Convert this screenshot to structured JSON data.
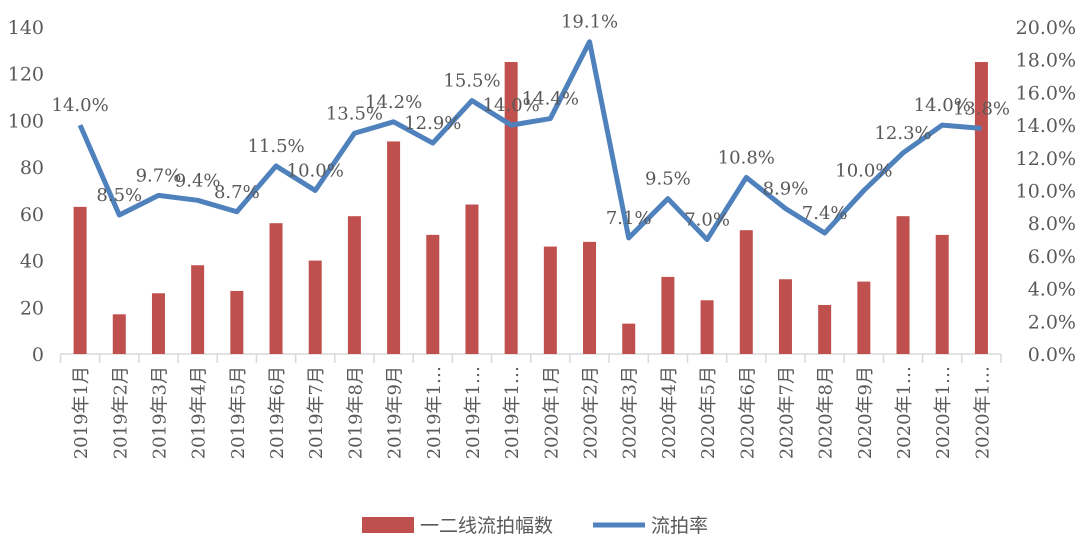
{
  "chart_data": {
    "type": "bar+line",
    "categories": [
      "2019年1月",
      "2019年2月",
      "2019年3月",
      "2019年4月",
      "2019年5月",
      "2019年6月",
      "2019年7月",
      "2019年8月",
      "2019年9月",
      "2019年1…",
      "2019年1…",
      "2019年1…",
      "2020年1月",
      "2020年2月",
      "2020年3月",
      "2020年4月",
      "2020年5月",
      "2020年6月",
      "2020年7月",
      "2020年8月",
      "2020年9月",
      "2020年1…",
      "2020年1…",
      "2020年1…"
    ],
    "series": [
      {
        "name": "一二线流拍幅数",
        "type": "bar",
        "axis": "left",
        "color": "#C0504D",
        "values": [
          63,
          17,
          26,
          38,
          27,
          56,
          40,
          59,
          91,
          51,
          64,
          125,
          46,
          48,
          13,
          33,
          23,
          53,
          32,
          21,
          31,
          59,
          51,
          125
        ]
      },
      {
        "name": "流拍率",
        "type": "line",
        "axis": "right",
        "color": "#4F81BD",
        "values": [
          14.0,
          8.5,
          9.7,
          9.4,
          8.7,
          11.5,
          10.0,
          13.5,
          14.2,
          12.9,
          15.5,
          14.0,
          14.4,
          19.1,
          7.1,
          9.5,
          7.0,
          10.8,
          8.9,
          7.4,
          10.0,
          12.3,
          14.0,
          13.8
        ],
        "labels": [
          "14.0%",
          "8.5%",
          "9.7%",
          "9.4%",
          "8.7%",
          "11.5%",
          "10.0%",
          "13.5%",
          "14.2%",
          "12.9%",
          "15.5%",
          "14.0%",
          "14.4%",
          "19.1%",
          "7.1%",
          "9.5%",
          "7.0%",
          "10.8%",
          "8.9%",
          "7.4%",
          "10.0%",
          "12.3%",
          "14.0%",
          "13.8%"
        ]
      }
    ],
    "y_left": {
      "range": [
        0,
        140
      ],
      "ticks": [
        "0",
        "20",
        "40",
        "60",
        "80",
        "100",
        "120",
        "140"
      ]
    },
    "y_right": {
      "range": [
        0,
        20
      ],
      "ticks": [
        "0.0%",
        "2.0%",
        "4.0%",
        "6.0%",
        "8.0%",
        "10.0%",
        "12.0%",
        "14.0%",
        "16.0%",
        "18.0%",
        "20.0%"
      ]
    },
    "grid": false,
    "legend_position": "bottom"
  }
}
